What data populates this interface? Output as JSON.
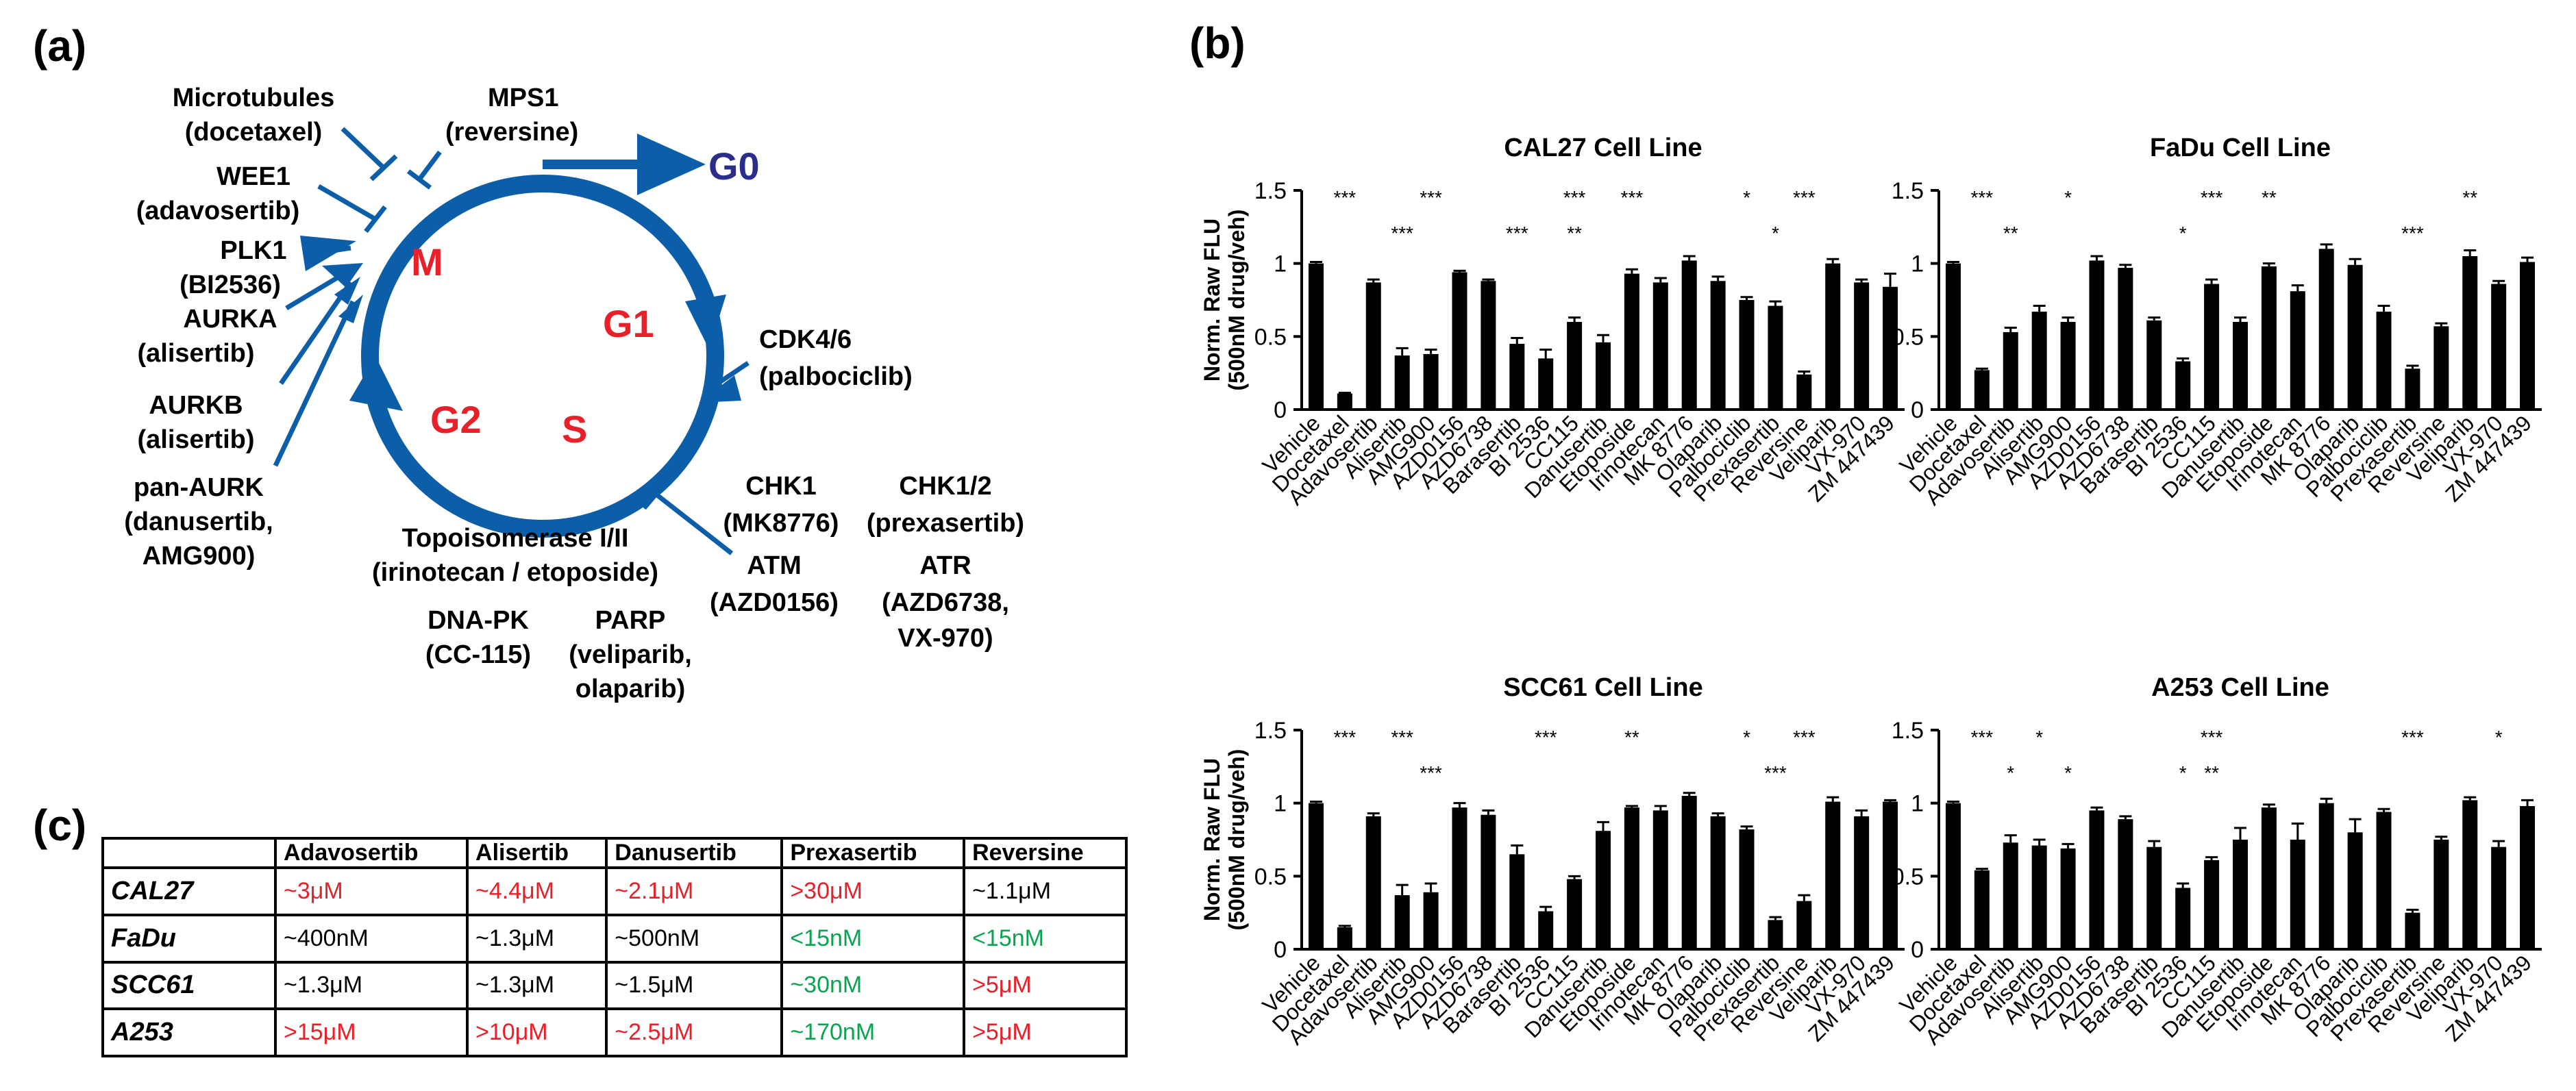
{
  "panels": {
    "a": "(a)",
    "b": "(b)",
    "c": "(c)"
  },
  "cycle": {
    "phases": {
      "g0": "G0",
      "m": "M",
      "g1": "G1",
      "g2": "G2",
      "s": "S"
    },
    "targets": [
      {
        "name": "Microtubules",
        "drug": "(docetaxel)"
      },
      {
        "name": "MPS1",
        "drug": "(reversine)"
      },
      {
        "name": "WEE1",
        "drug": "(adavosertib)"
      },
      {
        "name": "PLK1",
        "drug": "(BI2536)"
      },
      {
        "name": "AURKA",
        "drug": "(alisertib)"
      },
      {
        "name": "AURKB",
        "drug": "(alisertib)"
      },
      {
        "name": "pan-AURK",
        "drug": "(danusertib,",
        "drug2": "AMG900)"
      },
      {
        "name": "CDK4/6",
        "drug": "(palbociclib)"
      },
      {
        "name": "Topoisomerase I/II",
        "drug": "(irinotecan / etoposide)"
      },
      {
        "name": "DNA-PK",
        "drug": "(CC-115)"
      },
      {
        "name": "PARP",
        "drug": "(veliparib,",
        "drug2": "olaparib)"
      },
      {
        "name": "CHK1",
        "drug": "(MK8776)"
      },
      {
        "name": "CHK1/2",
        "drug": "(prexasertib)"
      },
      {
        "name": "ATM",
        "drug": "(AZD0156)"
      },
      {
        "name": "ATR",
        "drug": "(AZD6738,",
        "drug2": "VX-970)"
      }
    ]
  },
  "chart_data": [
    {
      "type": "bar",
      "title": "CAL27 Cell Line",
      "ylabel": "Norm. Raw FLU",
      "ylabel2": "(500nM drug/veh)",
      "ylim": [
        0,
        1.5
      ],
      "yticks": [
        "0",
        "0.5",
        "1",
        "1.5"
      ],
      "categories": [
        "Vehicle",
        "Docetaxel",
        "Adavosertib",
        "Alisertib",
        "AMG900",
        "AZD0156",
        "AZD6738",
        "Barasertib",
        "BI 2536",
        "CC115",
        "Danusertib",
        "Etoposide",
        "Irinotecan",
        "MK 8776",
        "Olaparib",
        "Palbociclib",
        "Prexasertib",
        "Reversine",
        "Veliparib",
        "VX-970",
        "ZM 447439"
      ],
      "values": [
        1.0,
        0.11,
        0.87,
        0.37,
        0.38,
        0.94,
        0.88,
        0.45,
        0.35,
        0.6,
        0.46,
        0.93,
        0.87,
        1.02,
        0.88,
        0.75,
        0.71,
        0.24,
        1.0,
        0.87,
        0.84
      ],
      "errors": [
        0.01,
        0.005,
        0.02,
        0.05,
        0.03,
        0.01,
        0.01,
        0.04,
        0.06,
        0.03,
        0.05,
        0.03,
        0.03,
        0.03,
        0.03,
        0.02,
        0.03,
        0.02,
        0.03,
        0.02,
        0.09
      ],
      "sig_upper": [
        "",
        "***",
        "",
        "",
        "***",
        "",
        "",
        "",
        "",
        "***",
        "",
        "***",
        "",
        "",
        "",
        "*",
        "",
        "***",
        "",
        "",
        ""
      ],
      "sig_lower": [
        "",
        "",
        "",
        "***",
        "",
        "",
        "",
        "***",
        "",
        "**",
        "",
        "",
        "",
        "",
        "",
        "",
        "*",
        "",
        "",
        "",
        ""
      ]
    },
    {
      "type": "bar",
      "title": "FaDu Cell Line",
      "ylabel": "",
      "ylabel2": "",
      "ylim": [
        0,
        1.5
      ],
      "yticks": [
        "0",
        "0.5",
        "1",
        "1.5"
      ],
      "categories": [
        "Vehicle",
        "Docetaxel",
        "Adavosertib",
        "Alisertib",
        "AMG900",
        "AZD0156",
        "AZD6738",
        "Barasertib",
        "BI 2536",
        "CC115",
        "Danusertib",
        "Etoposide",
        "Irinotecan",
        "MK 8776",
        "Olaparib",
        "Palbociclib",
        "Prexasertib",
        "Reversine",
        "Veliparib",
        "VX-970",
        "ZM 447439"
      ],
      "values": [
        1.0,
        0.27,
        0.53,
        0.67,
        0.6,
        1.02,
        0.97,
        0.61,
        0.33,
        0.86,
        0.6,
        0.98,
        0.81,
        1.1,
        0.99,
        0.67,
        0.28,
        0.57,
        1.05,
        0.86,
        1.01
      ],
      "errors": [
        0.01,
        0.01,
        0.03,
        0.04,
        0.03,
        0.03,
        0.02,
        0.02,
        0.02,
        0.03,
        0.03,
        0.02,
        0.04,
        0.03,
        0.04,
        0.04,
        0.02,
        0.02,
        0.04,
        0.02,
        0.03
      ],
      "sig_upper": [
        "",
        "***",
        "",
        "",
        "*",
        "",
        "",
        "",
        "",
        "***",
        "",
        "**",
        "",
        "",
        "",
        "",
        "",
        "",
        "**",
        "",
        ""
      ],
      "sig_lower": [
        "",
        "",
        "**",
        "",
        "",
        "",
        "",
        "",
        "*",
        "",
        "",
        "",
        "",
        "",
        "",
        "",
        "***",
        "",
        "",
        "",
        ""
      ]
    },
    {
      "type": "bar",
      "title": "SCC61 Cell Line",
      "ylabel": "Norm. Raw FLU",
      "ylabel2": "(500nM drug/veh)",
      "ylim": [
        0,
        1.5
      ],
      "yticks": [
        "0",
        "0.5",
        "1",
        "1.5"
      ],
      "categories": [
        "Vehicle",
        "Docetaxel",
        "Adavosertib",
        "Alisertib",
        "AMG900",
        "AZD0156",
        "AZD6738",
        "Barasertib",
        "BI 2536",
        "CC115",
        "Danusertib",
        "Etoposide",
        "Irinotecan",
        "MK 8776",
        "Olaparib",
        "Palbociclib",
        "Prexasertib",
        "Reversine",
        "Veliparib",
        "VX-970",
        "ZM 447439"
      ],
      "values": [
        1.0,
        0.15,
        0.91,
        0.37,
        0.39,
        0.97,
        0.92,
        0.65,
        0.26,
        0.48,
        0.81,
        0.97,
        0.95,
        1.05,
        0.91,
        0.82,
        0.2,
        0.33,
        1.01,
        0.91,
        1.01
      ],
      "errors": [
        0.01,
        0.01,
        0.02,
        0.07,
        0.06,
        0.03,
        0.03,
        0.06,
        0.03,
        0.02,
        0.06,
        0.01,
        0.03,
        0.02,
        0.02,
        0.02,
        0.02,
        0.04,
        0.03,
        0.04,
        0.01
      ],
      "sig_upper": [
        "",
        "***",
        "",
        "***",
        "",
        "",
        "",
        "",
        "***",
        "",
        "",
        "**",
        "",
        "",
        "",
        "*",
        "",
        "***",
        "",
        "",
        ""
      ],
      "sig_lower": [
        "",
        "",
        "",
        "",
        "***",
        "",
        "",
        "",
        "",
        "",
        "",
        "",
        "",
        "",
        "",
        "",
        "***",
        "",
        "",
        "",
        ""
      ]
    },
    {
      "type": "bar",
      "title": "A253 Cell Line",
      "ylabel": "",
      "ylabel2": "",
      "ylim": [
        0,
        1.5
      ],
      "yticks": [
        "0",
        "0.5",
        "1",
        "1.5"
      ],
      "categories": [
        "Vehicle",
        "Docetaxel",
        "Adavosertib",
        "Alisertib",
        "AMG900",
        "AZD0156",
        "AZD6738",
        "Barasertib",
        "BI 2536",
        "CC115",
        "Danusertib",
        "Etoposide",
        "Irinotecan",
        "MK 8776",
        "Olaparib",
        "Palbociclib",
        "Prexasertib",
        "Reversine",
        "Veliparib",
        "VX-970",
        "ZM 447439"
      ],
      "values": [
        1.0,
        0.54,
        0.73,
        0.71,
        0.69,
        0.95,
        0.89,
        0.7,
        0.42,
        0.61,
        0.75,
        0.97,
        0.75,
        1.0,
        0.8,
        0.94,
        0.25,
        0.75,
        1.02,
        0.7,
        0.98
      ],
      "errors": [
        0.01,
        0.01,
        0.05,
        0.04,
        0.03,
        0.02,
        0.02,
        0.04,
        0.03,
        0.02,
        0.08,
        0.02,
        0.11,
        0.03,
        0.09,
        0.02,
        0.02,
        0.02,
        0.02,
        0.04,
        0.04
      ],
      "sig_upper": [
        "",
        "***",
        "",
        "*",
        "",
        "",
        "",
        "",
        "",
        "***",
        "",
        "",
        "",
        "",
        "",
        "",
        "***",
        "",
        "",
        "*",
        ""
      ],
      "sig_lower": [
        "",
        "",
        "*",
        "",
        "*",
        "",
        "",
        "",
        "*",
        "**",
        "",
        "",
        "",
        "",
        "",
        "",
        "",
        "",
        "",
        "",
        ""
      ]
    }
  ],
  "table": {
    "headers": [
      "",
      "Adavosertib",
      "Alisertib",
      "Danusertib",
      "Prexasertib",
      "Reversine"
    ],
    "rows": [
      {
        "cell": "CAL27",
        "values": [
          "~3μM",
          "~4.4μM",
          "~2.1μM",
          ">30μM",
          "~1.1μM"
        ],
        "colors": [
          "red",
          "red",
          "red",
          "red",
          "black"
        ]
      },
      {
        "cell": "FaDu",
        "values": [
          "~400nM",
          "~1.3μM",
          "~500nM",
          "<15nM",
          "<15nM"
        ],
        "colors": [
          "black",
          "black",
          "black",
          "green",
          "green"
        ]
      },
      {
        "cell": "SCC61",
        "values": [
          "~1.3μM",
          "~1.3μM",
          "~1.5μM",
          "~30nM",
          ">5μM"
        ],
        "colors": [
          "black",
          "black",
          "black",
          "green",
          "red"
        ]
      },
      {
        "cell": "A253",
        "values": [
          ">15μM",
          ">10μM",
          "~2.5μM",
          "~170nM",
          ">5μM"
        ],
        "colors": [
          "red",
          "red",
          "red",
          "green",
          "red"
        ]
      }
    ]
  },
  "colors": {
    "cycle": "#0d5ea8",
    "phase": "#e8202a",
    "g0": "#2b2d8a",
    "bar": "#000000"
  }
}
